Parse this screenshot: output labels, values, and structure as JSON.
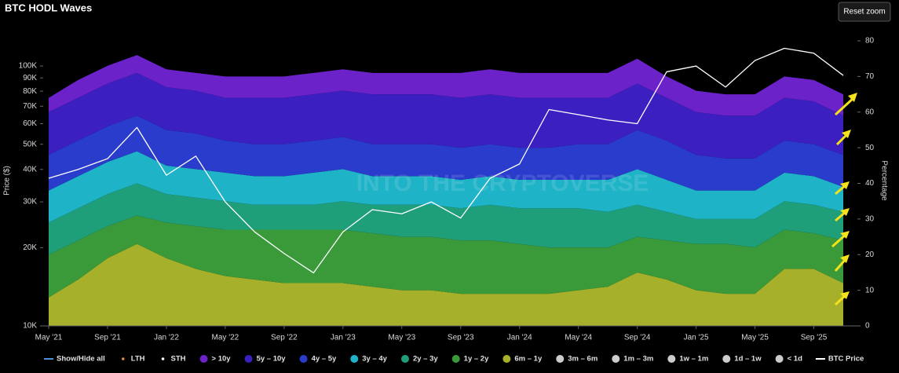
{
  "chart_data": {
    "type": "stacked-area",
    "title": "BTC HODL Waves",
    "button": "Reset zoom",
    "watermark": "INTO THE CRYPTOVERSE",
    "ylabel": "Price ($)",
    "y2label": "Percentage",
    "categories": [
      "May '21",
      null,
      "Sep '21",
      null,
      "Jan '22",
      null,
      "May '22",
      null,
      "Sep '22",
      null,
      "Jan '23",
      null,
      "May '23",
      null,
      "Sep '23",
      null,
      "Jan '24",
      null,
      "May '24",
      null,
      "Sep '24",
      null,
      "Jan '25",
      null,
      "May '25",
      null,
      "Sep '25",
      null
    ],
    "ylog": true,
    "ylim": [
      10000,
      125000
    ],
    "yticks": [
      {
        "value": 10000,
        "label": "10K"
      },
      {
        "value": 20000,
        "label": "20K"
      },
      {
        "value": 30000,
        "label": "30K"
      },
      {
        "value": 40000,
        "label": "40K"
      },
      {
        "value": 50000,
        "label": "50K"
      },
      {
        "value": 60000,
        "label": "60K"
      },
      {
        "value": 70000,
        "label": "70K"
      },
      {
        "value": 80000,
        "label": "80K"
      },
      {
        "value": 90000,
        "label": "90K"
      },
      {
        "value": 100000,
        "label": "100K"
      }
    ],
    "y2lim": [
      0,
      80
    ],
    "y2ticks": [
      0,
      10,
      20,
      30,
      40,
      50,
      60,
      70,
      80
    ],
    "legend_before": [
      {
        "name": "Show/Hide all",
        "color": "#4a90d9",
        "marker": "line"
      },
      {
        "name": "LTH",
        "color": "#d8903a",
        "marker": "dot"
      },
      {
        "name": "STH",
        "color": "#ffffff",
        "marker": "dot"
      }
    ],
    "series": [
      {
        "name": "> 10y",
        "color": "#6b22c9",
        "axis": "y2",
        "values": [
          4,
          5,
          5,
          5,
          5,
          5,
          6,
          6,
          6,
          6,
          6,
          6,
          6,
          6,
          7,
          7,
          7,
          7,
          7,
          7,
          7,
          6,
          6,
          6,
          6,
          6,
          6,
          6
        ]
      },
      {
        "name": "5y – 10y",
        "color": "#3b1fc0",
        "axis": "y2",
        "values": [
          12,
          12,
          12,
          12,
          12,
          12,
          12,
          13,
          13,
          13,
          13,
          14,
          14,
          14,
          14,
          14,
          14,
          14,
          13,
          13,
          13,
          12,
          12,
          12,
          12,
          12,
          12,
          11
        ]
      },
      {
        "name": "4y – 5y",
        "color": "#2a3ccc",
        "axis": "y2",
        "values": [
          10,
          10,
          10,
          10,
          10,
          10,
          9,
          9,
          9,
          9,
          9,
          9,
          9,
          9,
          9,
          9,
          9,
          9,
          10,
          10,
          11,
          11,
          10,
          9,
          9,
          9,
          9,
          9
        ]
      },
      {
        "name": "3y – 4y",
        "color": "#1fb3c7",
        "axis": "y2",
        "values": [
          9,
          9,
          9,
          9,
          8,
          8,
          8,
          8,
          8,
          9,
          9,
          8,
          8,
          8,
          8,
          8,
          8,
          8,
          8,
          9,
          10,
          9,
          8,
          8,
          8,
          8,
          8,
          7
        ]
      },
      {
        "name": "2y – 3y",
        "color": "#1f9e7a",
        "axis": "y2",
        "values": [
          9,
          9,
          9,
          9,
          8,
          8,
          8,
          7,
          7,
          7,
          8,
          8,
          9,
          9,
          9,
          10,
          10,
          11,
          11,
          10,
          9,
          8,
          7,
          7,
          8,
          8,
          8,
          8
        ]
      },
      {
        "name": "1y – 2y",
        "color": "#3a9a3a",
        "axis": "y2",
        "values": [
          12,
          11,
          9,
          8,
          10,
          12,
          13,
          14,
          15,
          15,
          15,
          15,
          15,
          15,
          15,
          15,
          14,
          13,
          12,
          11,
          10,
          11,
          13,
          14,
          13,
          11,
          10,
          12
        ]
      },
      {
        "name": "6m – 1y",
        "color": "#a6b02a",
        "axis": "y2",
        "values": [
          8,
          13,
          19,
          23,
          19,
          16,
          14,
          13,
          12,
          12,
          12,
          11,
          10,
          10,
          9,
          9,
          9,
          9,
          10,
          11,
          15,
          13,
          10,
          9,
          9,
          16,
          16,
          12
        ]
      }
    ],
    "legend_hidden": [
      {
        "name": "3m – 6m",
        "color": "#cccccc"
      },
      {
        "name": "1m – 3m",
        "color": "#cccccc"
      },
      {
        "name": "1w – 1m",
        "color": "#cccccc"
      },
      {
        "name": "1d – 1w",
        "color": "#cccccc"
      },
      {
        "name": "< 1d",
        "color": "#cccccc"
      }
    ],
    "price": {
      "name": "BTC Price",
      "color": "#ffffff",
      "axis": "y",
      "values": [
        37000,
        40000,
        44000,
        58000,
        38000,
        45000,
        30000,
        23000,
        19000,
        16000,
        23000,
        28000,
        27000,
        30000,
        26000,
        37000,
        42000,
        68000,
        65000,
        62000,
        60000,
        95000,
        100000,
        83000,
        105000,
        117000,
        112000,
        92000
      ]
    }
  }
}
